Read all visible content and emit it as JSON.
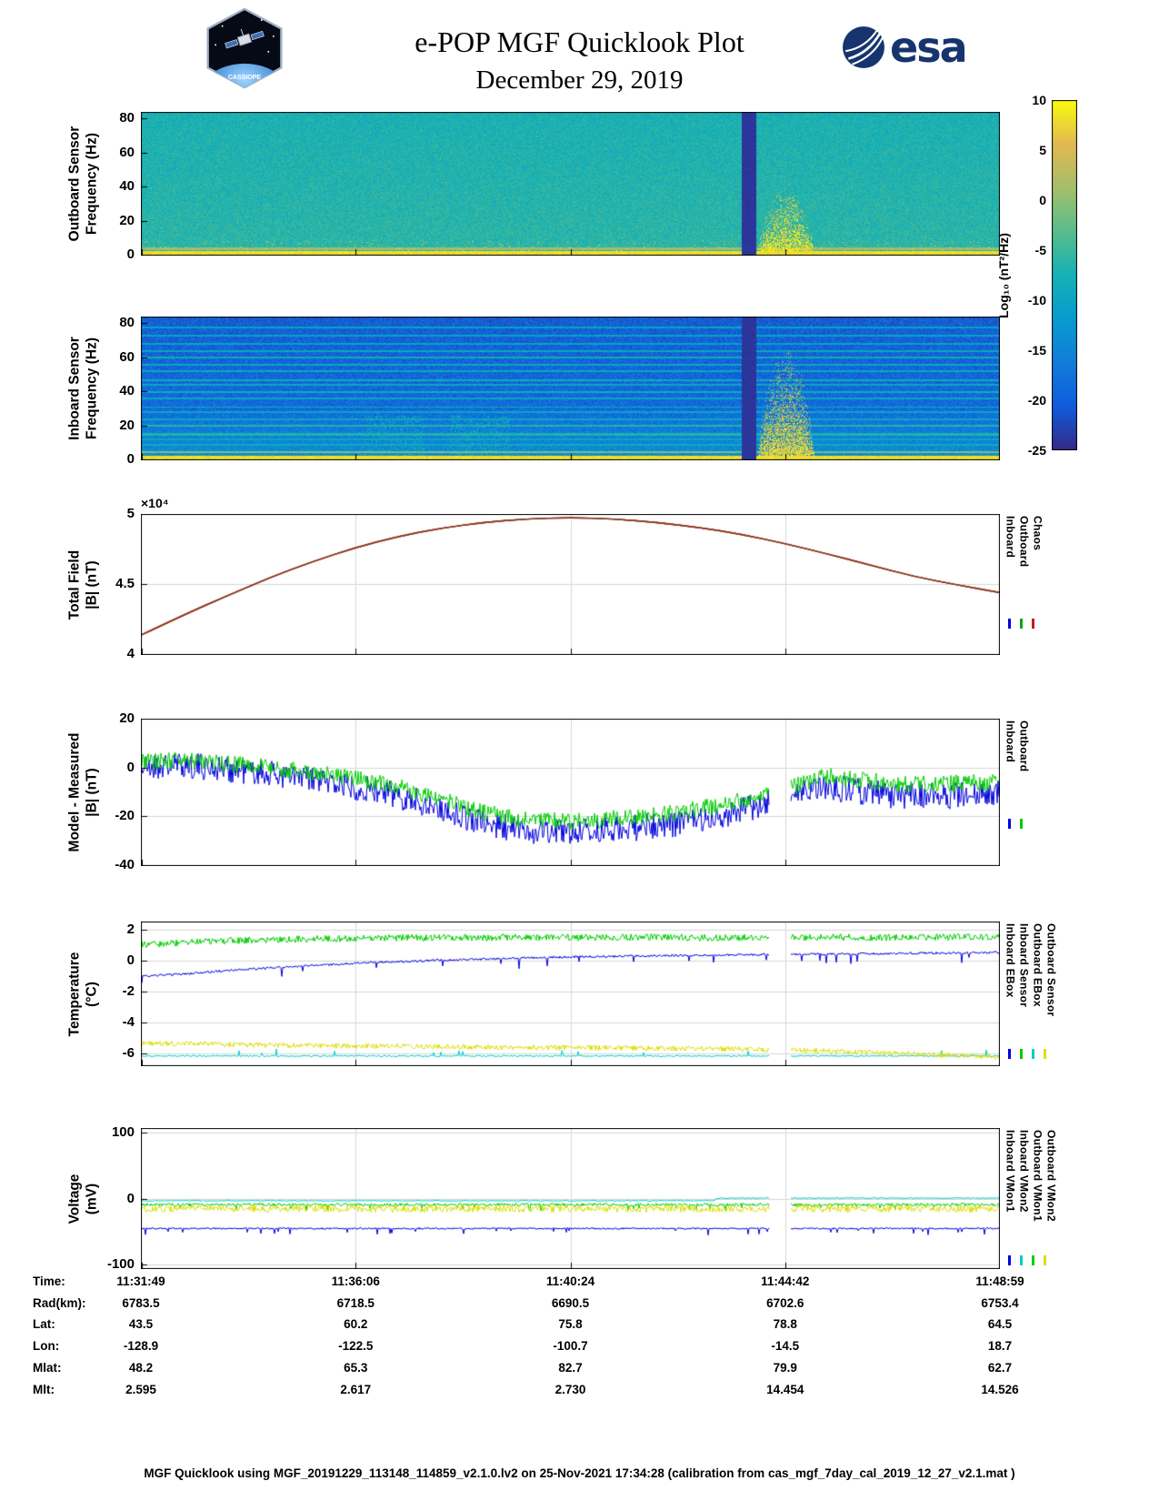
{
  "header": {
    "title": "e-POP MGF Quicklook Plot",
    "subtitle": "December 29, 2019",
    "mission_logo": "CASSIOPE",
    "esa_wordmark": "esa"
  },
  "colorbar": {
    "label": "Log₁₀ (nT²/Hz)",
    "vmin": -25,
    "vmax": 10,
    "ticks": [
      10,
      5,
      0,
      -5,
      -10,
      -15,
      -20,
      -25
    ],
    "colormap": "parula"
  },
  "xaxis": {
    "rows": [
      {
        "label": "Time:",
        "values": [
          "11:31:49",
          "11:36:06",
          "11:40:24",
          "11:44:42",
          "11:48:59"
        ]
      },
      {
        "label": "Rad(km):",
        "values": [
          "6783.5",
          "6718.5",
          "6690.5",
          "6702.6",
          "6753.4"
        ]
      },
      {
        "label": "Lat:",
        "values": [
          "43.5",
          "60.2",
          "75.8",
          "78.8",
          "64.5"
        ]
      },
      {
        "label": "Lon:",
        "values": [
          "-128.9",
          "-122.5",
          "-100.7",
          "-14.5",
          "18.7"
        ]
      },
      {
        "label": "Mlat:",
        "values": [
          "48.2",
          "65.3",
          "82.7",
          "79.9",
          "62.7"
        ]
      },
      {
        "label": "Mlt:",
        "values": [
          "2.595",
          "2.617",
          "2.730",
          "14.454",
          "14.526"
        ]
      }
    ]
  },
  "footer": "MGF Quicklook using MGF_20191229_113148_114859_v2.1.0.lv2 on 25-Nov-2021 17:34:28 (calibration from cas_mgf_7day_cal_2019_12_27_v2.1.mat )",
  "chart_data": [
    {
      "id": "outboard-spectrogram",
      "type": "heatmap",
      "ylabel": [
        "Outboard Sensor",
        "Frequency (Hz)"
      ],
      "ylim": [
        0,
        84
      ],
      "yticks": [
        0,
        20,
        40,
        60,
        80
      ],
      "value_units": "Log10 (nT2/Hz)",
      "seed": 7,
      "background": {
        "level": -6,
        "noise": 2.6,
        "tilt_per_hz": -0.018
      },
      "bottom_band": {
        "freq_max": 2.2,
        "level": 8
      },
      "hlines": [
        {
          "freq": 3.6,
          "level": 1,
          "width": 0.7
        }
      ],
      "speckle": {
        "freq_max": 9,
        "prob": 0.025,
        "level": 4
      },
      "gap_stripe": {
        "x0": 0.7,
        "x1": 0.717,
        "level": -24
      },
      "burst": {
        "x0": 0.718,
        "x1": 0.798,
        "freq_max": 40,
        "level": 5
      }
    },
    {
      "id": "inboard-spectrogram",
      "type": "heatmap",
      "ylabel": [
        "Inboard Sensor",
        "Frequency (Hz)"
      ],
      "ylim": [
        0,
        84
      ],
      "yticks": [
        0,
        20,
        40,
        60,
        80
      ],
      "value_units": "Log10 (nT2/Hz)",
      "seed": 13,
      "background": {
        "level": -17.5,
        "noise": 3.2,
        "tilt_per_hz": -0.03,
        "low_boost": {
          "freq_max": 30,
          "per_hz": 0.14
        }
      },
      "bottom_band": {
        "freq_max": 2.2,
        "level": 8
      },
      "hlines": [
        {
          "freq": 4.6,
          "level": -1,
          "width": 0.7
        },
        {
          "freq": 9,
          "level": -9,
          "width": 0.5
        },
        {
          "freq": 12,
          "level": -10,
          "width": 0.5
        },
        {
          "freq": 15,
          "level": -7,
          "width": 0.7
        },
        {
          "freq": 20,
          "level": -7,
          "width": 0.7
        },
        {
          "freq": 24,
          "level": -10,
          "width": 0.5
        },
        {
          "freq": 28,
          "level": -10,
          "width": 0.5
        },
        {
          "freq": 31,
          "level": -9,
          "width": 0.5
        },
        {
          "freq": 36,
          "level": -10,
          "width": 0.5
        },
        {
          "freq": 40,
          "level": -9,
          "width": 0.5
        },
        {
          "freq": 44,
          "level": -10,
          "width": 0.5
        },
        {
          "freq": 47,
          "level": -9,
          "width": 0.5
        },
        {
          "freq": 52,
          "level": -10,
          "width": 0.5
        },
        {
          "freq": 56,
          "level": -10,
          "width": 0.5
        },
        {
          "freq": 60,
          "level": -9,
          "width": 0.5
        },
        {
          "freq": 64,
          "level": -10,
          "width": 0.5
        },
        {
          "freq": 68,
          "level": -11,
          "width": 0.5
        },
        {
          "freq": 73,
          "level": -11,
          "width": 0.5
        },
        {
          "freq": 78,
          "level": -11,
          "width": 0.5
        }
      ],
      "vbands": [
        {
          "x0": 0.26,
          "x1": 0.33,
          "freq_max": 26,
          "prob": 0.2,
          "level": -8
        },
        {
          "x0": 0.36,
          "x1": 0.43,
          "freq_max": 26,
          "prob": 0.2,
          "level": -8
        }
      ],
      "gap_stripe": {
        "x0": 0.7,
        "x1": 0.717,
        "level": -24
      },
      "burst": {
        "x0": 0.718,
        "x1": 0.798,
        "freq_max": 66,
        "level": 3
      }
    },
    {
      "id": "total-field",
      "type": "line",
      "ylabel": [
        "Total Field",
        "|B| (nT)"
      ],
      "scale_note": "×10⁴",
      "ylim": [
        40000,
        50000
      ],
      "yticks": [
        40000,
        45000,
        50000
      ],
      "ytick_labels": [
        "4",
        "4.5",
        "5"
      ],
      "x": [
        0,
        0.05,
        0.1,
        0.15,
        0.2,
        0.25,
        0.3,
        0.35,
        0.4,
        0.45,
        0.5,
        0.55,
        0.6,
        0.65,
        0.7,
        0.75,
        0.8,
        0.85,
        0.9,
        0.95,
        1
      ],
      "y_common": [
        41350,
        42800,
        44150,
        45450,
        46600,
        47600,
        48400,
        49000,
        49400,
        49650,
        49750,
        49650,
        49400,
        49050,
        48550,
        47900,
        47150,
        46350,
        45550,
        44950,
        44400
      ],
      "series": [
        {
          "name": "Inboard",
          "color": "#0000dd",
          "smooth": true,
          "use_common": true
        },
        {
          "name": "Outboard",
          "color": "#00aa00",
          "smooth": true,
          "use_common": true
        },
        {
          "name": "Chaos",
          "color": "#bb2211",
          "smooth": true,
          "use_common": true
        }
      ],
      "legend": [
        "Inboard",
        "Outboard",
        "Chaos"
      ]
    },
    {
      "id": "model-minus-measured",
      "type": "line",
      "ylabel": [
        "Model - Measured",
        "|B| (nT)"
      ],
      "ylim": [
        -40,
        20
      ],
      "yticks": [
        -40,
        -20,
        0,
        20
      ],
      "ytick_labels": [
        "-40",
        "-20",
        "0",
        "20"
      ],
      "gap": [
        0.733,
        0.757
      ],
      "seed": 21,
      "x": [
        0,
        0.05,
        0.1,
        0.15,
        0.2,
        0.25,
        0.3,
        0.35,
        0.4,
        0.45,
        0.5,
        0.55,
        0.6,
        0.65,
        0.7,
        0.75,
        0.8,
        0.85,
        0.9,
        0.95,
        1
      ],
      "series": [
        {
          "name": "Inboard",
          "color": "#0000dd",
          "noise": 5.5,
          "y": [
            0,
            1,
            -0.5,
            -2.5,
            -5,
            -8,
            -11.5,
            -17,
            -23,
            -26,
            -26.5,
            -25.5,
            -24,
            -21.5,
            -17.5,
            -12,
            -8,
            -10.5,
            -12,
            -11.5,
            -11
          ]
        },
        {
          "name": "Outboard",
          "color": "#00cc00",
          "noise": 3.5,
          "y": [
            2,
            3,
            1.5,
            0,
            -2,
            -4.5,
            -8,
            -13,
            -18.5,
            -21.5,
            -22,
            -21,
            -19.5,
            -17,
            -13.5,
            -9,
            -3.5,
            -5.5,
            -7,
            -6.5,
            -6
          ]
        }
      ],
      "legend": [
        "Inboard",
        "Outboard"
      ]
    },
    {
      "id": "temperature",
      "type": "line",
      "ylabel": [
        "Temperature",
        "(°C)"
      ],
      "ylim": [
        -6.75,
        2.55
      ],
      "yticks": [
        -6,
        -4,
        -2,
        0,
        2
      ],
      "ytick_labels": [
        "-6",
        "-4",
        "-2",
        "0",
        "2"
      ],
      "gap": [
        0.733,
        0.757
      ],
      "seed": 33,
      "x": [
        0,
        0.05,
        0.1,
        0.15,
        0.2,
        0.25,
        0.3,
        0.35,
        0.4,
        0.45,
        0.5,
        0.55,
        0.6,
        0.65,
        0.7,
        0.75,
        0.8,
        0.85,
        0.9,
        0.95,
        1
      ],
      "series": [
        {
          "name": "Inboard EBox",
          "color": "#0000dd",
          "noise": 0.07,
          "spikes": {
            "prob": 0.02,
            "amp": -0.45
          },
          "y": [
            -1,
            -0.85,
            -0.62,
            -0.45,
            -0.3,
            -0.15,
            -0.05,
            0.05,
            0.12,
            0.2,
            0.26,
            0.3,
            0.33,
            0.36,
            0.4,
            0.43,
            0.45,
            0.47,
            0.5,
            0.52,
            0.55
          ]
        },
        {
          "name": "Inboard Sensor",
          "color": "#00cc00",
          "noise": 0.22,
          "y": [
            1.05,
            1.2,
            1.3,
            1.38,
            1.42,
            1.45,
            1.5,
            1.5,
            1.52,
            1.55,
            1.5,
            1.52,
            1.55,
            1.5,
            1.52,
            1.5,
            1.55,
            1.52,
            1.5,
            1.55,
            1.52
          ]
        },
        {
          "name": "Outboard EBox",
          "color": "#00cccc",
          "noise": 0.05,
          "spikes": {
            "prob": 0.02,
            "amp": 0.3
          },
          "x": [
            0,
            1
          ],
          "y": [
            -6.15,
            -6.15
          ]
        },
        {
          "name": "Outboard Sensor",
          "color": "#dddd00",
          "noise": 0.17,
          "y": [
            -5.3,
            -5.35,
            -5.4,
            -5.45,
            -5.48,
            -5.5,
            -5.52,
            -5.55,
            -5.58,
            -5.6,
            -5.6,
            -5.62,
            -5.65,
            -5.68,
            -5.7,
            -5.75,
            -5.82,
            -5.92,
            -6.02,
            -6.12,
            -6.2
          ]
        }
      ],
      "legend": [
        "Inboard EBox",
        "Inboard Sensor",
        "Outboard EBox",
        "Outboard Sensor"
      ]
    },
    {
      "id": "voltage",
      "type": "line",
      "ylabel": [
        "Voltage",
        "(mV)"
      ],
      "ylim": [
        -105,
        107
      ],
      "yticks": [
        -100,
        0,
        100
      ],
      "ytick_labels": [
        "-100",
        "0",
        "100"
      ],
      "gap": [
        0.733,
        0.757
      ],
      "seed": 44,
      "series": [
        {
          "name": "Inboard VMon1",
          "color": "#0000dd",
          "noise": 1.2,
          "spikes": {
            "prob": 0.04,
            "amp": -6
          },
          "x": [
            0,
            1
          ],
          "y": [
            -45,
            -45
          ]
        },
        {
          "name": "Inboard VMon2",
          "color": "#00cccc",
          "noise": 0.8,
          "x": [
            0,
            0.668,
            0.672,
            1
          ],
          "y": [
            -3,
            -3,
            1,
            1
          ]
        },
        {
          "name": "Outboard VMon1",
          "color": "#00cc00",
          "noise": 2.2,
          "spikes": {
            "prob": 0.04,
            "amp": -6
          },
          "x": [
            0,
            1
          ],
          "y": [
            -9,
            -9
          ]
        },
        {
          "name": "Outboard VMon2",
          "color": "#dddd00",
          "noise": 5.5,
          "x": [
            0,
            1
          ],
          "y": [
            -15,
            -15
          ]
        }
      ],
      "legend": [
        "Inboard VMon1",
        "Inboard VMon2",
        "Outboard VMon1",
        "Outboard VMon2"
      ]
    }
  ]
}
